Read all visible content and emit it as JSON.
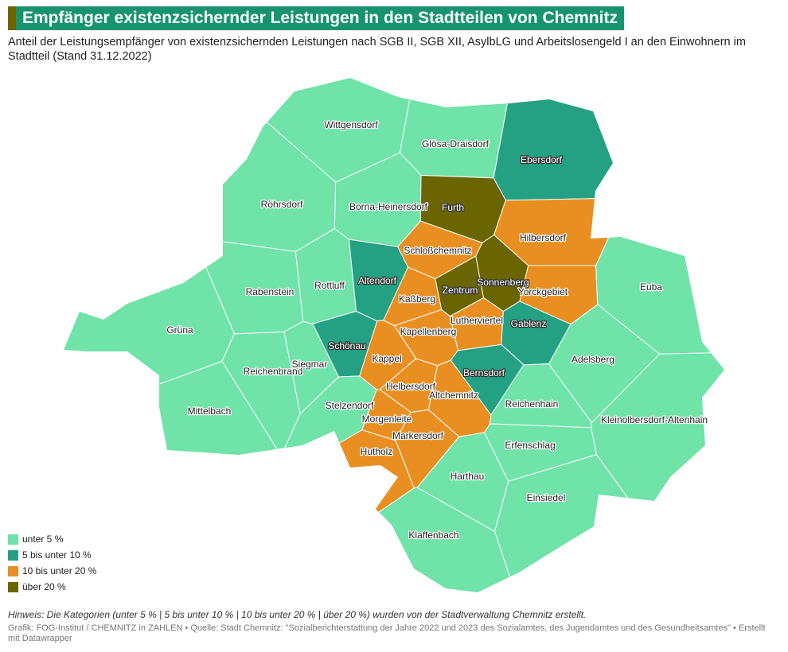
{
  "header": {
    "title": "Empfänger existenzsichernder Leistungen in den Stadtteilen von Chemnitz",
    "subtitle": "Anteil der Leistungsempfänger von existenzsichernden Leistungen nach SGB II, SGB XII, AsylbLG und Arbeitslosengeld I an den Einwohnern im Stadtteil (Stand 31.12.2022)"
  },
  "map": {
    "legend": [
      {
        "label": "unter 5 %",
        "color": "#6fe3a8"
      },
      {
        "label": "5 bis unter 10 %",
        "color": "#24a183"
      },
      {
        "label": "10 bis unter 20 %",
        "color": "#e98f22"
      },
      {
        "label": "über 20 %",
        "color": "#6b6500"
      }
    ],
    "districts": [
      {
        "name": "Wittgensdorf",
        "category": 0
      },
      {
        "name": "Glösa-Draisdorf",
        "category": 0
      },
      {
        "name": "Ebersdorf",
        "category": 1
      },
      {
        "name": "Röhrsdorf",
        "category": 0
      },
      {
        "name": "Borna-Heinersdorf",
        "category": 0
      },
      {
        "name": "Furth",
        "category": 3
      },
      {
        "name": "Hilbersdorf",
        "category": 2
      },
      {
        "name": "Schloßchemnitz",
        "category": 2
      },
      {
        "name": "Altendorf",
        "category": 1
      },
      {
        "name": "Rabenstein",
        "category": 0
      },
      {
        "name": "Rottluff",
        "category": 0
      },
      {
        "name": "Zentrum",
        "category": 3
      },
      {
        "name": "Sonnenberg",
        "category": 3
      },
      {
        "name": "Yorckgebiet",
        "category": 2
      },
      {
        "name": "Kaßberg",
        "category": 2
      },
      {
        "name": "Euba",
        "category": 0
      },
      {
        "name": "Lutherviertel",
        "category": 2
      },
      {
        "name": "Gablenz",
        "category": 1
      },
      {
        "name": "Kapellenberg",
        "category": 2
      },
      {
        "name": "Grüna",
        "category": 0
      },
      {
        "name": "Schönau",
        "category": 1
      },
      {
        "name": "Kappel",
        "category": 2
      },
      {
        "name": "Adelsberg",
        "category": 0
      },
      {
        "name": "Bernsdorf",
        "category": 1
      },
      {
        "name": "Reichenbrand",
        "category": 0
      },
      {
        "name": "Siegmar",
        "category": 0
      },
      {
        "name": "Helbersdorf",
        "category": 2
      },
      {
        "name": "Altchemnitz",
        "category": 2
      },
      {
        "name": "Mittelbach",
        "category": 0
      },
      {
        "name": "Stelzendorf",
        "category": 0
      },
      {
        "name": "Reichenhain",
        "category": 0
      },
      {
        "name": "Kleinolbersdorf-Altenhain",
        "category": 0
      },
      {
        "name": "Morgenleite",
        "category": 2
      },
      {
        "name": "Markersdorf",
        "category": 2
      },
      {
        "name": "Erfenschlag",
        "category": 0
      },
      {
        "name": "Hutholz",
        "category": 2
      },
      {
        "name": "Harthau",
        "category": 0
      },
      {
        "name": "Einsiedel",
        "category": 0
      },
      {
        "name": "Klaffenbach",
        "category": 0
      }
    ]
  },
  "footer": {
    "note": "Hinweis: Die Kategorien (unter 5 % | 5 bis unter 10 % | 10 bis unter 20 % | über 20 %) wurden von der Stadtverwaltung Chemnitz erstellt.",
    "source": "Grafik: FOG-Institut / CHEMNITZ in ZAHLEN • Quelle: Stadt Chemnitz: \"Sozialberichterstattung der Jahre 2022 und 2023 des Sozialamtes, des Jugendamtes und des Gesundheitsamtes\" • Erstellt mit Datawrapper"
  }
}
